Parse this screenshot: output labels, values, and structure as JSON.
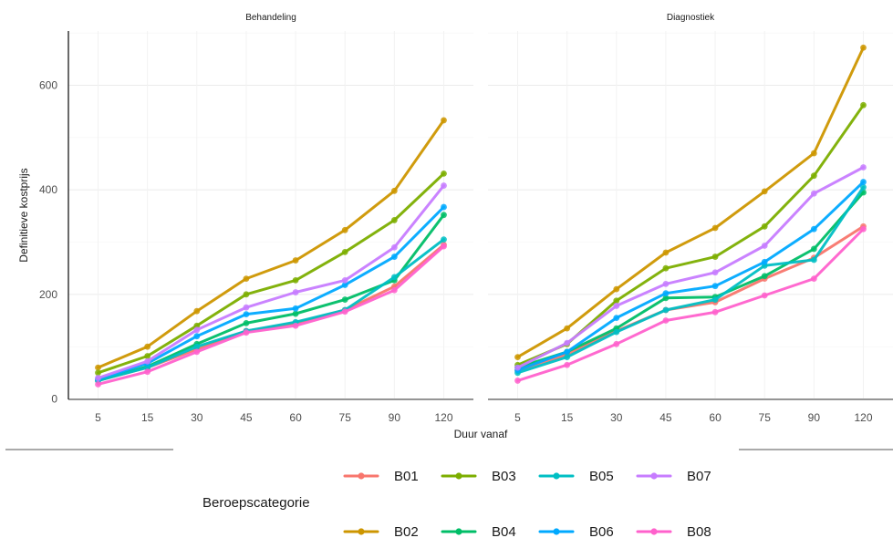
{
  "chart_data": {
    "type": "line",
    "panels": [
      "Behandeling",
      "Diagnostiek"
    ],
    "xlabel": "Duur vanaf",
    "ylabel": "Definitieve kostprijs",
    "categories": [
      "5",
      "15",
      "30",
      "45",
      "60",
      "75",
      "90",
      "120"
    ],
    "ylim": [
      0,
      700
    ],
    "yticks": [
      0,
      200,
      400,
      600
    ],
    "grid": true,
    "legend": {
      "title": "Beroepscategorie",
      "position": "bottom"
    },
    "series": [
      {
        "name": "B01",
        "color": "#F8766D",
        "values": {
          "Behandeling": [
            35,
            60,
            95,
            130,
            145,
            170,
            215,
            295
          ],
          "Diagnostiek": [
            55,
            85,
            130,
            170,
            185,
            230,
            270,
            330
          ]
        }
      },
      {
        "name": "B02",
        "color": "#CD9600",
        "values": {
          "Behandeling": [
            60,
            100,
            168,
            230,
            265,
            323,
            398,
            533
          ],
          "Diagnostiek": [
            80,
            135,
            210,
            280,
            327,
            397,
            470,
            672
          ]
        }
      },
      {
        "name": "B03",
        "color": "#7CAE00",
        "values": {
          "Behandeling": [
            50,
            82,
            140,
            200,
            227,
            281,
            342,
            431
          ],
          "Diagnostiek": [
            65,
            105,
            188,
            250,
            272,
            330,
            427,
            562
          ]
        }
      },
      {
        "name": "B04",
        "color": "#00BE67",
        "values": {
          "Behandeling": [
            35,
            62,
            105,
            145,
            163,
            190,
            227,
            352
          ],
          "Diagnostiek": [
            60,
            90,
            135,
            193,
            195,
            235,
            287,
            395
          ]
        }
      },
      {
        "name": "B05",
        "color": "#00BFC4",
        "values": {
          "Behandeling": [
            35,
            60,
            100,
            130,
            147,
            170,
            233,
            305
          ],
          "Diagnostiek": [
            50,
            80,
            128,
            170,
            190,
            255,
            266,
            405
          ]
        }
      },
      {
        "name": "B06",
        "color": "#00A9FF",
        "values": {
          "Behandeling": [
            38,
            68,
            120,
            162,
            173,
            218,
            272,
            367
          ],
          "Diagnostiek": [
            55,
            90,
            155,
            202,
            216,
            262,
            325,
            415
          ]
        }
      },
      {
        "name": "B07",
        "color": "#C77CFF",
        "values": {
          "Behandeling": [
            40,
            72,
            132,
            175,
            204,
            227,
            290,
            408
          ],
          "Diagnostiek": [
            60,
            107,
            178,
            220,
            242,
            293,
            393,
            443
          ]
        }
      },
      {
        "name": "B08",
        "color": "#FF61CC",
        "values": {
          "Behandeling": [
            28,
            52,
            90,
            127,
            140,
            167,
            208,
            292
          ],
          "Diagnostiek": [
            35,
            65,
            105,
            150,
            166,
            198,
            230,
            325
          ]
        }
      }
    ]
  }
}
